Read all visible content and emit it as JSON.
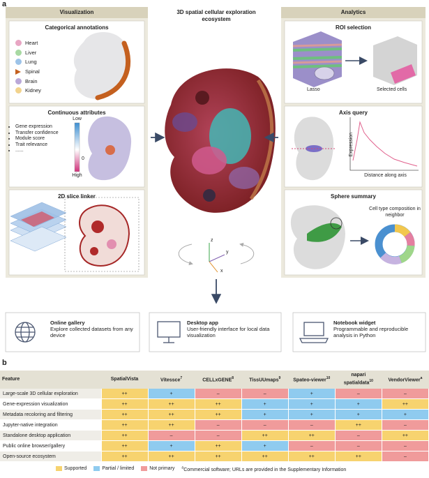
{
  "panel_labels": [
    "a",
    "b"
  ],
  "visualization": {
    "title": "Visualization",
    "categorical": {
      "title": "Categorical annotations",
      "legend": [
        {
          "label": "Heart",
          "color": "#e8a6c3"
        },
        {
          "label": "Liver",
          "color": "#a8d9a3"
        },
        {
          "label": "Lung",
          "color": "#9dc3e8"
        },
        {
          "label": "Spinal",
          "color": "#c4601f",
          "shape": "triangle"
        },
        {
          "label": "Brain",
          "color": "#baa8d8"
        },
        {
          "label": "Kidney",
          "color": "#f2d38d"
        }
      ]
    },
    "continuous": {
      "title": "Continuous attributes",
      "bullets": [
        "Gene expression",
        "Transfer confidence",
        "Module score",
        "Trait relevance",
        "......"
      ],
      "colorbar": {
        "top": "Low",
        "middle": "0",
        "bottom": "High"
      }
    },
    "slice_linker": {
      "title": "2D slice linker"
    }
  },
  "center": {
    "title": "3D spatial cellular exploration ecosystem",
    "axes": [
      "z",
      "y",
      "x"
    ]
  },
  "analytics": {
    "title": "Analytics",
    "roi": {
      "title": "ROI selection",
      "labels": [
        "Lasso",
        "Selected cells"
      ]
    },
    "axis_query": {
      "title": "Axis query",
      "y_label": "Expression",
      "x_label": "Distance along axis"
    },
    "sphere": {
      "title": "Sphere summary",
      "label": "Cell type composition in neighbor"
    }
  },
  "tools": [
    {
      "title": "Online gallery",
      "text": "Explore collected datasets from any device"
    },
    {
      "title": "Desktop app",
      "text": "User-friendly interface for local data visualization"
    },
    {
      "title": "Notebook widget",
      "text": "Programmable and reproducible analysis in Python"
    }
  ],
  "table": {
    "header": [
      {
        "name": "Feature"
      },
      {
        "name": "SpatialVista"
      },
      {
        "name": "Vitessce",
        "ref": "7"
      },
      {
        "name": "CELLxGENE",
        "ref": "8"
      },
      {
        "name": "TissUUmaps",
        "ref": "9"
      },
      {
        "name": "Spateo-viewer",
        "ref": "10"
      },
      {
        "name": "napari spatialdata",
        "ref": "10"
      },
      {
        "name": "VendorViewer",
        "ref": "a"
      }
    ],
    "rows": [
      {
        "feature": "Large-scale 3D cellular exploration",
        "cells": [
          {
            "text": "++",
            "color": "#f7d36f"
          },
          {
            "text": "+",
            "color": "#8fcbef"
          },
          {
            "text": "–",
            "color": "#f09b9b"
          },
          {
            "text": "–",
            "color": "#f09b9b"
          },
          {
            "text": "+",
            "color": "#8fcbef"
          },
          {
            "text": "–",
            "color": "#f09b9b"
          },
          {
            "text": "–",
            "color": "#f09b9b"
          }
        ]
      },
      {
        "feature": "Gene-expression visualization",
        "cells": [
          {
            "text": "++",
            "color": "#f7d36f"
          },
          {
            "text": "++",
            "color": "#f7d36f"
          },
          {
            "text": "++",
            "color": "#f7d36f"
          },
          {
            "text": "+",
            "color": "#8fcbef"
          },
          {
            "text": "+",
            "color": "#8fcbef"
          },
          {
            "text": "+",
            "color": "#8fcbef"
          },
          {
            "text": "++",
            "color": "#f7d36f"
          }
        ]
      },
      {
        "feature": "Metadata recoloring and filtering",
        "cells": [
          {
            "text": "++",
            "color": "#f7d36f"
          },
          {
            "text": "++",
            "color": "#f7d36f"
          },
          {
            "text": "++",
            "color": "#f7d36f"
          },
          {
            "text": "+",
            "color": "#8fcbef"
          },
          {
            "text": "+",
            "color": "#8fcbef"
          },
          {
            "text": "+",
            "color": "#8fcbef"
          },
          {
            "text": "+",
            "color": "#8fcbef"
          }
        ]
      },
      {
        "feature": "Jupyter-native integration",
        "cells": [
          {
            "text": "++",
            "color": "#f7d36f"
          },
          {
            "text": "++",
            "color": "#f7d36f"
          },
          {
            "text": "–",
            "color": "#f09b9b"
          },
          {
            "text": "–",
            "color": "#f09b9b"
          },
          {
            "text": "–",
            "color": "#f09b9b"
          },
          {
            "text": "++",
            "color": "#f7d36f"
          },
          {
            "text": "–",
            "color": "#f09b9b"
          }
        ]
      },
      {
        "feature": "Standalone desktop application",
        "cells": [
          {
            "text": "++",
            "color": "#f7d36f"
          },
          {
            "text": "–",
            "color": "#f09b9b"
          },
          {
            "text": "–",
            "color": "#f09b9b"
          },
          {
            "text": "++",
            "color": "#f7d36f"
          },
          {
            "text": "++",
            "color": "#f7d36f"
          },
          {
            "text": "–",
            "color": "#f09b9b"
          },
          {
            "text": "++",
            "color": "#f7d36f"
          }
        ]
      },
      {
        "feature": "Public online browser/gallery",
        "cells": [
          {
            "text": "++",
            "color": "#f7d36f"
          },
          {
            "text": "+",
            "color": "#8fcbef"
          },
          {
            "text": "++",
            "color": "#f7d36f"
          },
          {
            "text": "+",
            "color": "#8fcbef"
          },
          {
            "text": "–",
            "color": "#f09b9b"
          },
          {
            "text": "–",
            "color": "#f09b9b"
          },
          {
            "text": "–",
            "color": "#f09b9b"
          }
        ]
      },
      {
        "feature": "Open-source ecosystem",
        "cells": [
          {
            "text": "++",
            "color": "#f7d36f"
          },
          {
            "text": "++",
            "color": "#f7d36f"
          },
          {
            "text": "++",
            "color": "#f7d36f"
          },
          {
            "text": "++",
            "color": "#f7d36f"
          },
          {
            "text": "++",
            "color": "#f7d36f"
          },
          {
            "text": "++",
            "color": "#f7d36f"
          },
          {
            "text": "–",
            "color": "#f09b9b"
          }
        ]
      }
    ]
  },
  "legend": [
    {
      "label": "Supported",
      "color": "#f7d36f"
    },
    {
      "label": "Partial / limited",
      "color": "#8fcbef"
    },
    {
      "label": "Not primary",
      "color": "#f09b9b"
    }
  ],
  "footnote": {
    "mark": "a",
    "text": "Commercial software; URLs are provided in the Supplementary Information"
  }
}
